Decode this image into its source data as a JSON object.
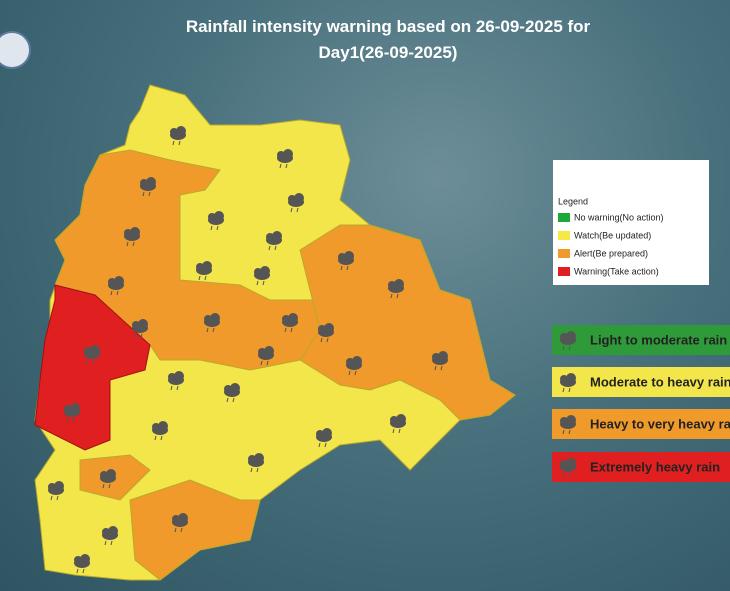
{
  "title": {
    "line1": "Rainfall intensity warning based on 26-09-2025 for",
    "line2": "Day1(26-09-2025)"
  },
  "legend": {
    "heading": "Legend",
    "items": [
      "No warning(No action)",
      "Watch(Be updated)",
      "Alert(Be prepared)",
      "Warning(Take action)"
    ]
  },
  "intensity": [
    "Light to moderate rain",
    "Moderate to heavy rain",
    "Heavy to very heavy rain",
    "Extremely heavy rain"
  ]
}
